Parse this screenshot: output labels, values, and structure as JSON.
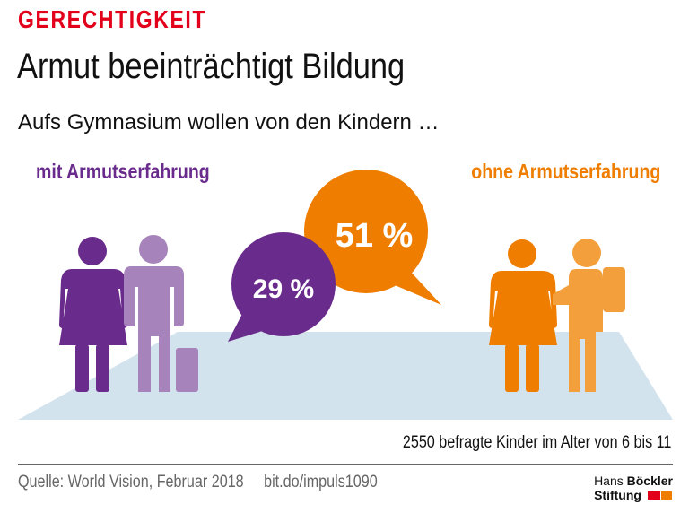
{
  "header": {
    "kicker": "GERECHTIGKEIT",
    "title": "Armut beeinträchtigt Bildung",
    "subtitle": "Aufs Gymnasium wollen von den Kindern …"
  },
  "groups": [
    {
      "label": "mit Armutserfahrung",
      "value": 29,
      "value_text": "29 %",
      "color": "#6a2c8c",
      "color_light": "#a783bb"
    },
    {
      "label": "ohne Armutserfahrung",
      "value": 51,
      "value_text": "51 %",
      "color": "#ef7d00",
      "color_light": "#f3a03c"
    }
  ],
  "note": "2550 befragte Kinder im Alter von 6 bis 11",
  "footer": {
    "source": "Quelle:  World Vision, Februar 2018",
    "link": "bit.do/impuls1090",
    "logo_line1_a": "Hans",
    "logo_line1_b": "Böckler",
    "logo_line2": "Stiftung"
  },
  "colors": {
    "accent": "#e2001a",
    "floor": "#d3e3ee"
  }
}
